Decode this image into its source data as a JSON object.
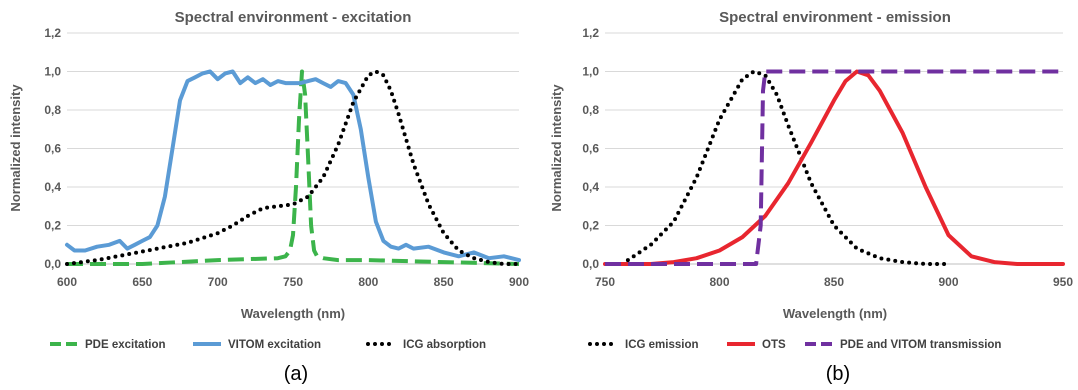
{
  "chart_data": [
    {
      "type": "line",
      "title": "Spectral environment - excitation",
      "xlabel": "Wavelength (nm)",
      "ylabel": "Normalized intensity",
      "xlim": [
        600,
        900
      ],
      "ylim": [
        0,
        1.2
      ],
      "xticks": [
        "600",
        "650",
        "700",
        "750",
        "800",
        "850",
        "900"
      ],
      "yticks": [
        "0,0",
        "0,2",
        "0,4",
        "0,6",
        "0,8",
        "1,0",
        "1,2"
      ],
      "grid": "horizontal",
      "legend_position": "bottom",
      "caption": "(a)",
      "series": [
        {
          "name": "PDE excitation",
          "color": "#3cb44b",
          "style": "dashed",
          "x": [
            600,
            650,
            700,
            740,
            745,
            748,
            750,
            752,
            754,
            756,
            758,
            760,
            762,
            764,
            766,
            770,
            780,
            800,
            850,
            900
          ],
          "y": [
            0.0,
            0.0,
            0.02,
            0.03,
            0.04,
            0.07,
            0.15,
            0.4,
            0.75,
            1.0,
            0.88,
            0.55,
            0.2,
            0.07,
            0.04,
            0.03,
            0.02,
            0.02,
            0.01,
            0.0
          ]
        },
        {
          "name": "VITOM excitation",
          "color": "#5b9bd5",
          "style": "solid",
          "x": [
            600,
            605,
            612,
            620,
            628,
            635,
            640,
            645,
            650,
            655,
            660,
            665,
            670,
            675,
            680,
            685,
            690,
            695,
            700,
            705,
            710,
            715,
            720,
            725,
            730,
            735,
            740,
            745,
            750,
            755,
            760,
            765,
            770,
            775,
            780,
            785,
            790,
            795,
            800,
            805,
            810,
            815,
            820,
            825,
            830,
            840,
            850,
            860,
            870,
            880,
            890,
            900
          ],
          "y": [
            0.1,
            0.07,
            0.07,
            0.09,
            0.1,
            0.12,
            0.08,
            0.1,
            0.12,
            0.14,
            0.2,
            0.35,
            0.6,
            0.85,
            0.95,
            0.97,
            0.99,
            1.0,
            0.96,
            0.99,
            1.0,
            0.94,
            0.97,
            0.94,
            0.96,
            0.93,
            0.95,
            0.94,
            0.94,
            0.94,
            0.95,
            0.96,
            0.94,
            0.92,
            0.95,
            0.94,
            0.88,
            0.7,
            0.45,
            0.22,
            0.12,
            0.09,
            0.08,
            0.1,
            0.08,
            0.09,
            0.06,
            0.04,
            0.06,
            0.03,
            0.04,
            0.02
          ]
        },
        {
          "name": "ICG absorption",
          "color": "#000000",
          "style": "dotted",
          "x": [
            600,
            620,
            640,
            660,
            680,
            700,
            710,
            720,
            730,
            740,
            750,
            760,
            770,
            780,
            790,
            800,
            805,
            810,
            815,
            820,
            830,
            840,
            850,
            860,
            870,
            880,
            890,
            900
          ],
          "y": [
            0.0,
            0.02,
            0.05,
            0.08,
            0.11,
            0.16,
            0.2,
            0.25,
            0.29,
            0.3,
            0.31,
            0.35,
            0.45,
            0.62,
            0.84,
            0.98,
            1.0,
            0.98,
            0.9,
            0.78,
            0.52,
            0.31,
            0.16,
            0.07,
            0.03,
            0.01,
            0.0,
            0.0
          ]
        }
      ]
    },
    {
      "type": "line",
      "title": "Spectral environment - emission",
      "xlabel": "Wavelength (nm)",
      "ylabel": "Normalized intensity",
      "xlim": [
        750,
        950
      ],
      "ylim": [
        0,
        1.2
      ],
      "xticks": [
        "750",
        "800",
        "850",
        "900",
        "950"
      ],
      "yticks": [
        "0,0",
        "0,2",
        "0,4",
        "0,6",
        "0,8",
        "1,0",
        "1,2"
      ],
      "grid": "horizontal",
      "legend_position": "bottom",
      "caption": "(b)",
      "series": [
        {
          "name": "ICG emission",
          "color": "#000000",
          "style": "dotted",
          "x": [
            760,
            770,
            780,
            790,
            800,
            810,
            815,
            820,
            825,
            830,
            840,
            850,
            860,
            870,
            880,
            890,
            900
          ],
          "y": [
            0.02,
            0.1,
            0.22,
            0.45,
            0.75,
            0.96,
            1.0,
            0.98,
            0.88,
            0.72,
            0.42,
            0.2,
            0.08,
            0.03,
            0.01,
            0.0,
            0.0
          ]
        },
        {
          "name": "OTS",
          "color": "#e8262f",
          "style": "solid",
          "x": [
            750,
            770,
            780,
            790,
            800,
            810,
            820,
            830,
            840,
            850,
            855,
            860,
            865,
            870,
            880,
            890,
            900,
            910,
            920,
            930,
            950
          ],
          "y": [
            0.0,
            0.0,
            0.01,
            0.03,
            0.07,
            0.14,
            0.25,
            0.42,
            0.63,
            0.85,
            0.95,
            1.0,
            0.98,
            0.9,
            0.68,
            0.4,
            0.15,
            0.04,
            0.01,
            0.0,
            0.0
          ]
        },
        {
          "name": "PDE and VITOM transmission",
          "color": "#7030a0",
          "style": "dashed",
          "x": [
            750,
            816,
            818,
            819,
            820,
            822,
            950
          ],
          "y": [
            0.0,
            0.0,
            0.2,
            0.9,
            1.0,
            1.0,
            1.0
          ]
        }
      ]
    }
  ]
}
